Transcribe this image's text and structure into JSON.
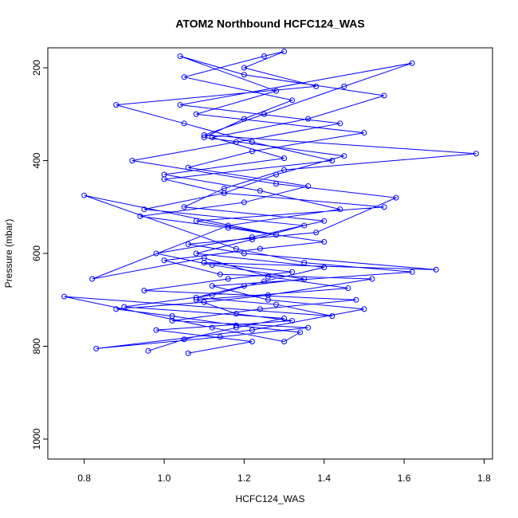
{
  "chart_data": {
    "type": "line",
    "title": "ATOM2 Northbound HCFC124_WAS",
    "x_label": "HCFC124_WAS",
    "y_label": "Pressure (mbar)",
    "color": "#0000ff",
    "marker": "circle",
    "invert_y": true,
    "xlim": [
      0.709,
      1.821
    ],
    "ylim": [
      157,
      1043
    ],
    "xticks": [
      0.8,
      {
        "value": 1,
        "label": "1.0"
      },
      1.2,
      1.4,
      1.6,
      1.8
    ],
    "yticks": [
      200,
      400,
      600,
      800,
      1000
    ],
    "x": [
      0.96,
      1.05,
      1.18,
      1.3,
      0.9,
      1.12,
      1.25,
      1.4,
      1.08,
      1.22,
      1.35,
      0.95,
      1.15,
      1.28,
      1.45,
      1.1,
      1.2,
      1.32,
      1.05,
      1.25,
      1.3,
      1.2,
      1.38,
      0.88,
      1.05,
      1.22,
      1.42,
      1.0,
      1.15,
      1.55,
      1.08,
      1.28,
      0.8,
      1.18,
      1.35,
      1.62,
      1.12,
      1.26,
      1.5,
      1.22,
      0.83,
      1.14,
      1.36,
      1.02,
      1.24,
      1.48,
      0.95,
      1.16,
      1.32,
      1.1,
      1.68,
      1.2,
      1.06,
      1.38,
      1.58,
      1.28,
      0.92,
      1.18,
      1.44,
      1.04,
      1.62,
      1.45,
      1.25,
      1.1,
      1.78,
      1.3,
      1.15,
      1.05,
      1.4,
      1.22,
      0.98,
      1.12,
      1.35,
      1.2,
      1.08,
      1.28,
      1.42,
      0.75,
      1.12,
      1.3,
      1.34,
      1.18,
      1.02,
      0.88,
      1.1,
      1.26,
      1.52,
      1.14,
      1.0,
      1.24,
      1.4,
      1.16,
      0.94,
      1.2,
      1.36,
      1.06,
      1.22,
      1.5,
      1.08,
      1.28,
      1.04,
      1.2,
      1.55,
      1.36,
      1.12,
      1.3,
      1.0,
      1.24,
      1.44,
      1.16,
      0.82,
      1.1,
      1.26,
      1.46,
      1.08,
      1.18,
      1.32,
      0.98,
      1.22,
      1.06
    ],
    "values": [
      810,
      785,
      760,
      740,
      715,
      690,
      660,
      630,
      600,
      570,
      540,
      505,
      470,
      430,
      390,
      350,
      310,
      270,
      220,
      175,
      165,
      200,
      240,
      280,
      320,
      360,
      400,
      440,
      470,
      500,
      530,
      560,
      475,
      590,
      620,
      640,
      670,
      700,
      720,
      765,
      805,
      780,
      760,
      745,
      720,
      700,
      680,
      655,
      640,
      620,
      635,
      600,
      580,
      555,
      480,
      450,
      400,
      360,
      320,
      280,
      190,
      240,
      300,
      345,
      385,
      420,
      460,
      500,
      530,
      565,
      600,
      625,
      655,
      670,
      695,
      710,
      735,
      693,
      760,
      790,
      770,
      755,
      735,
      720,
      705,
      690,
      655,
      645,
      615,
      590,
      575,
      545,
      520,
      490,
      455,
      415,
      380,
      340,
      300,
      250,
      175,
      215,
      260,
      310,
      350,
      395,
      430,
      465,
      505,
      540,
      655,
      610,
      650,
      675,
      700,
      730,
      745,
      765,
      790,
      815
    ]
  }
}
